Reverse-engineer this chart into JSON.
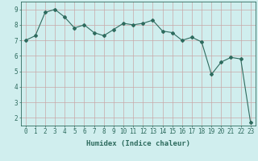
{
  "x": [
    0,
    1,
    2,
    3,
    4,
    5,
    6,
    7,
    8,
    9,
    10,
    11,
    12,
    13,
    14,
    15,
    16,
    17,
    18,
    19,
    20,
    21,
    22,
    23
  ],
  "y": [
    7.0,
    7.3,
    8.8,
    9.0,
    8.5,
    7.8,
    8.0,
    7.5,
    7.3,
    7.7,
    8.1,
    8.0,
    8.1,
    8.3,
    7.6,
    7.5,
    7.0,
    7.2,
    6.9,
    4.8,
    5.6,
    5.9,
    5.8,
    1.7
  ],
  "line_color": "#2e6b5e",
  "marker": "D",
  "markersize": 2.0,
  "linewidth": 0.8,
  "xlabel": "Humidex (Indice chaleur)",
  "xlim": [
    -0.5,
    23.5
  ],
  "ylim": [
    1.5,
    9.5
  ],
  "yticks": [
    2,
    3,
    4,
    5,
    6,
    7,
    8,
    9
  ],
  "xticks": [
    0,
    1,
    2,
    3,
    4,
    5,
    6,
    7,
    8,
    9,
    10,
    11,
    12,
    13,
    14,
    15,
    16,
    17,
    18,
    19,
    20,
    21,
    22,
    23
  ],
  "background_color": "#d0eeee",
  "grid_color": "#c8a8a8",
  "xlabel_fontsize": 6.5,
  "tick_fontsize": 5.5
}
